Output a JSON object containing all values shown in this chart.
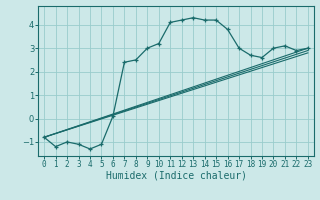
{
  "xlabel": "Humidex (Indice chaleur)",
  "bg_color": "#cce8e8",
  "grid_color": "#99cccc",
  "line_color": "#1a6b6b",
  "xlim": [
    -0.5,
    23.5
  ],
  "ylim": [
    -1.6,
    4.8
  ],
  "xticks": [
    0,
    1,
    2,
    3,
    4,
    5,
    6,
    7,
    8,
    9,
    10,
    11,
    12,
    13,
    14,
    15,
    16,
    17,
    18,
    19,
    20,
    21,
    22,
    23
  ],
  "yticks": [
    -1,
    0,
    1,
    2,
    3,
    4
  ],
  "main_x": [
    0,
    1,
    2,
    3,
    4,
    5,
    6,
    7,
    8,
    9,
    10,
    11,
    12,
    13,
    14,
    15,
    16,
    17,
    18,
    19,
    20,
    21,
    22,
    23
  ],
  "main_y": [
    -0.8,
    -1.2,
    -1.0,
    -1.1,
    -1.3,
    -1.1,
    0.1,
    2.4,
    2.5,
    3.0,
    3.2,
    4.1,
    4.2,
    4.3,
    4.2,
    4.2,
    3.8,
    3.0,
    2.7,
    2.6,
    3.0,
    3.1,
    2.9,
    3.0
  ],
  "line1_x": [
    0,
    23
  ],
  "line1_y": [
    -0.8,
    3.0
  ],
  "line2_x": [
    0,
    23
  ],
  "line2_y": [
    -0.8,
    2.9
  ],
  "line3_x": [
    0,
    23
  ],
  "line3_y": [
    -0.8,
    2.8
  ]
}
